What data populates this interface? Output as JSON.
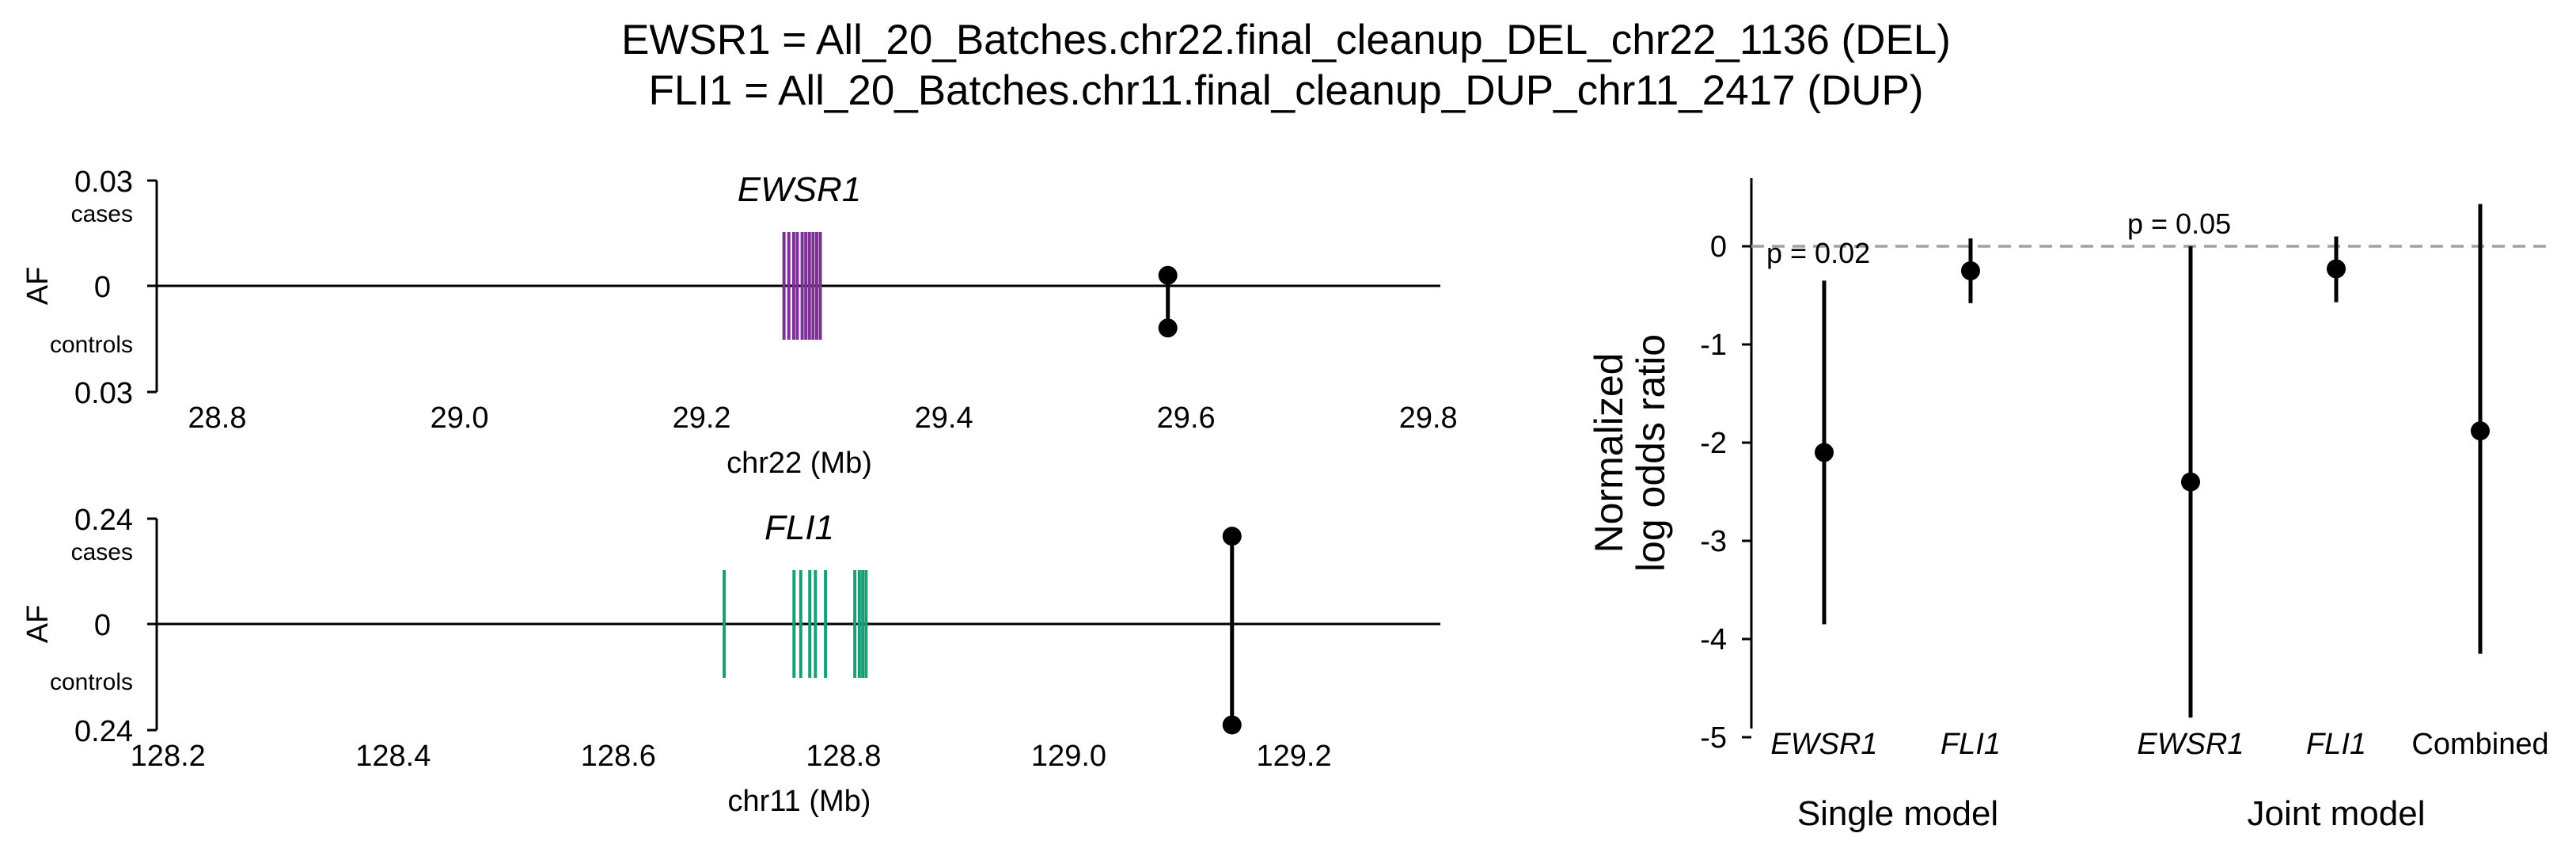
{
  "title": {
    "line1": "EWSR1 = All_20_Batches.chr22.final_cleanup_DEL_chr22_1136 (DEL)",
    "line2": "FLI1 = All_20_Batches.chr11.final_cleanup_DUP_chr11_2417 (DUP)"
  },
  "colors": {
    "ewsr1": "#7b3294",
    "fli1": "#1a9e77",
    "dashed": "#a0a0a0",
    "ink": "#000000"
  },
  "chart_data": [
    {
      "type": "gene_track",
      "gene": "EWSR1",
      "xlabel": "chr22 (Mb)",
      "ylabel": "AF",
      "top_label": "cases",
      "bottom_label": "controls",
      "ytick_top": "0.03",
      "ytick_zero": "0",
      "ytick_bottom": "0.03",
      "ylim": [
        -0.03,
        0.03
      ],
      "xlim": [
        28.75,
        29.81
      ],
      "xticks": [
        28.8,
        29.0,
        29.2,
        29.4,
        29.6,
        29.8
      ],
      "xtick_labels": [
        "28.8",
        "29.0",
        "29.2",
        "29.4",
        "29.6",
        "29.8"
      ],
      "gene_extent": [
        29.268,
        29.3
      ],
      "exons": [
        29.268,
        29.272,
        29.276,
        29.279,
        29.283,
        29.286,
        29.289,
        29.292,
        29.295,
        29.298
      ],
      "variant": {
        "pos": 29.585,
        "case_af": 0.003,
        "control_af": 0.012
      }
    },
    {
      "type": "gene_track",
      "gene": "FLI1",
      "xlabel": "chr11 (Mb)",
      "ylabel": "AF",
      "top_label": "cases",
      "bottom_label": "controls",
      "ytick_top": "0.24",
      "ytick_zero": "0",
      "ytick_bottom": "0.24",
      "ylim": [
        -0.24,
        0.24
      ],
      "xlim": [
        128.19,
        129.33
      ],
      "xticks": [
        128.2,
        128.4,
        128.6,
        128.8,
        129.0,
        129.2
      ],
      "xtick_labels": [
        "128.2",
        "128.4",
        "128.6",
        "128.8",
        "129.0",
        "129.2"
      ],
      "gene_extent": [
        128.694,
        128.82
      ],
      "exons": [
        128.694,
        128.756,
        128.762,
        128.77,
        128.775,
        128.784,
        128.81,
        128.814,
        128.817,
        128.82
      ],
      "variant": {
        "pos": 129.145,
        "case_af": 0.2,
        "control_af": 0.23
      }
    },
    {
      "type": "scatter",
      "ylabel_line1": "Normalized",
      "ylabel_line2": "log odds ratio",
      "ylim": [
        -5,
        0.6
      ],
      "yticks": [
        0,
        -1,
        -2,
        -3,
        -4,
        -5
      ],
      "ytick_labels": [
        "0",
        "-1",
        "-2",
        "-3",
        "-4",
        "-5"
      ],
      "reference_line": 0,
      "categories": [
        "EWSR1",
        "FLI1",
        "EWSR1",
        "FLI1",
        "Combined"
      ],
      "italic": [
        true,
        true,
        true,
        true,
        false
      ],
      "groups": [
        "Single model",
        "Joint model"
      ],
      "points": [
        {
          "y": -2.1,
          "lo": -3.85,
          "hi": -0.35
        },
        {
          "y": -0.25,
          "lo": -0.58,
          "hi": 0.08
        },
        {
          "y": -2.4,
          "lo": -4.8,
          "hi": 0.0
        },
        {
          "y": -0.23,
          "lo": -0.57,
          "hi": 0.1
        },
        {
          "y": -1.88,
          "lo": -4.15,
          "hi": 0.43
        }
      ],
      "annotations": [
        "p = 0.02",
        "p = 0.05"
      ]
    }
  ]
}
